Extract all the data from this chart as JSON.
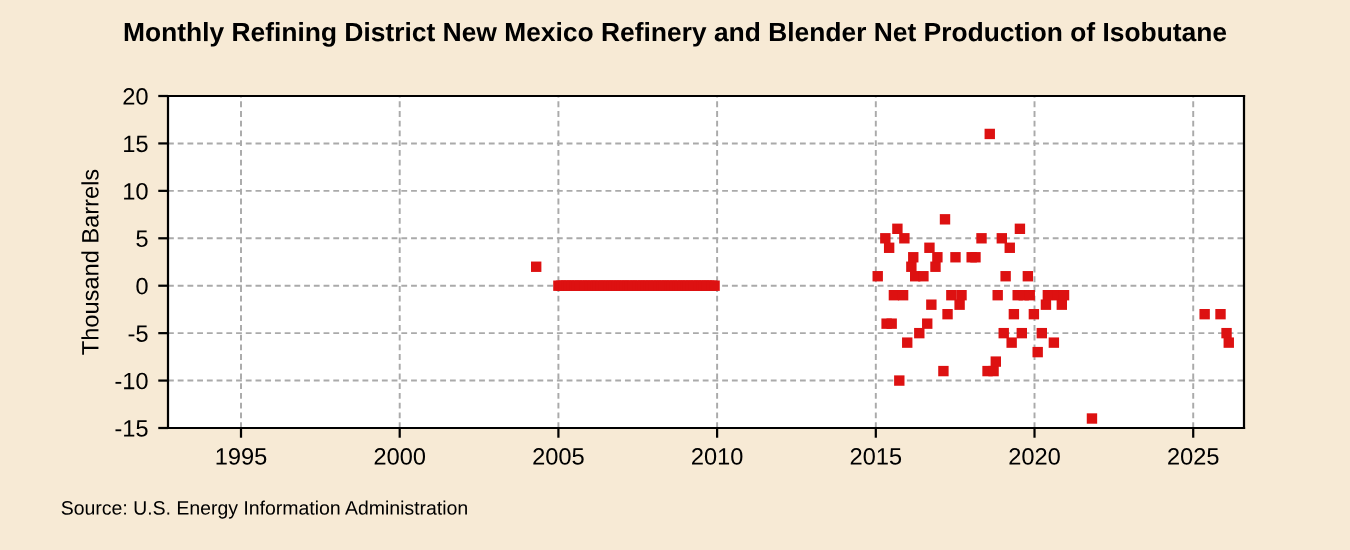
{
  "chart_data": {
    "type": "scatter",
    "title": "Monthly Refining District New Mexico Refinery and Blender Net Production of Isobutane",
    "ylabel": "Thousand Barrels",
    "annotations": [
      "Source: U.S. Energy Information Administration"
    ],
    "series": [
      {
        "color": "#dd1111",
        "x": [
          2004.3,
          2005.0,
          2005.08,
          2005.17,
          2005.25,
          2005.33,
          2005.42,
          2005.5,
          2005.58,
          2005.67,
          2005.75,
          2005.83,
          2005.92,
          2006.0,
          2006.08,
          2006.17,
          2006.25,
          2006.33,
          2006.42,
          2006.5,
          2006.58,
          2006.67,
          2006.75,
          2006.83,
          2006.92,
          2007.0,
          2007.08,
          2007.17,
          2007.25,
          2007.33,
          2007.42,
          2007.5,
          2007.58,
          2007.67,
          2007.75,
          2007.83,
          2007.92,
          2008.0,
          2008.08,
          2008.17,
          2008.25,
          2008.33,
          2008.42,
          2008.5,
          2008.58,
          2008.67,
          2008.75,
          2008.83,
          2008.92,
          2009.0,
          2009.08,
          2009.17,
          2009.25,
          2009.33,
          2009.42,
          2009.5,
          2009.58,
          2009.67,
          2009.75,
          2009.83,
          2009.92,
          2015.06,
          2015.3,
          2015.42,
          2015.34,
          2015.5,
          2015.57,
          2015.68,
          2015.74,
          2015.86,
          2015.9,
          2015.99,
          2016.12,
          2016.18,
          2016.24,
          2016.37,
          2016.5,
          2016.62,
          2016.69,
          2016.75,
          2016.88,
          2016.94,
          2017.13,
          2017.18,
          2017.26,
          2017.38,
          2017.51,
          2017.64,
          2017.7,
          2018.02,
          2018.14,
          2018.33,
          2018.52,
          2018.59,
          2018.71,
          2018.78,
          2018.84,
          2018.97,
          2019.03,
          2019.09,
          2019.22,
          2019.28,
          2019.35,
          2019.47,
          2019.54,
          2019.6,
          2019.66,
          2019.79,
          2019.85,
          2019.98,
          2020.1,
          2020.23,
          2020.36,
          2020.42,
          2020.61,
          2020.74,
          2020.86,
          2020.93,
          2021.81,
          2025.36,
          2025.86,
          2026.05,
          2026.12
        ],
        "values": [
          2,
          0,
          0,
          0,
          0,
          0,
          0,
          0,
          0,
          0,
          0,
          0,
          0,
          0,
          0,
          0,
          0,
          0,
          0,
          0,
          0,
          0,
          0,
          0,
          0,
          0,
          0,
          0,
          0,
          0,
          0,
          0,
          0,
          0,
          0,
          0,
          0,
          0,
          0,
          0,
          0,
          0,
          0,
          0,
          0,
          0,
          0,
          0,
          0,
          0,
          0,
          0,
          0,
          0,
          0,
          0,
          0,
          0,
          0,
          0,
          0,
          1,
          5,
          4,
          -4,
          -4,
          -1,
          6,
          -10,
          -1,
          5,
          -6,
          2,
          3,
          1,
          -5,
          1,
          -4,
          4,
          -2,
          2,
          3,
          -9,
          7,
          -3,
          -1,
          3,
          -2,
          -1,
          3,
          3,
          5,
          -9,
          16,
          -9,
          -8,
          -1,
          5,
          -5,
          1,
          4,
          -6,
          -3,
          -1,
          6,
          -5,
          -1,
          1,
          -1,
          -3,
          -7,
          -5,
          -2,
          -1,
          -6,
          -1,
          -2,
          -1,
          -14,
          -3,
          -3,
          -5,
          -6
        ]
      }
    ],
    "xlim": [
      1992.7,
      2026.6
    ],
    "xticks": [
      1995,
      2000,
      2005,
      2010,
      2015,
      2020,
      2025
    ],
    "ylim": [
      -15,
      20
    ],
    "yticks": [
      -15,
      -10,
      -5,
      0,
      5,
      10,
      15,
      20
    ],
    "grid": true,
    "marker": "square"
  }
}
